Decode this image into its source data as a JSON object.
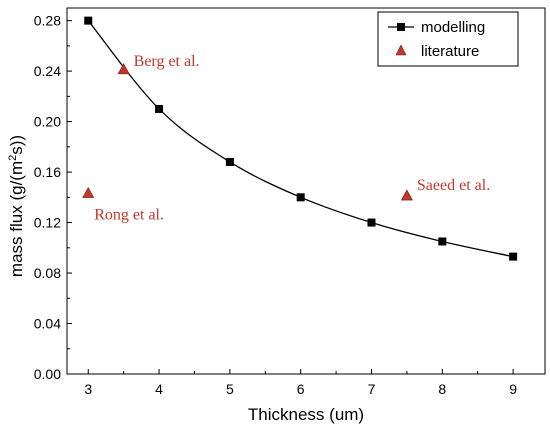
{
  "chart_data": {
    "type": "scatter",
    "xlabel": "Thickness (um)",
    "ylabel_main": "mass flux (g/(m",
    "ylabel_sup": "2",
    "ylabel_end": "s))",
    "xlim": [
      2.7,
      9.45
    ],
    "ylim": [
      0.0,
      0.29
    ],
    "x_ticks": [
      3,
      4,
      5,
      6,
      7,
      8,
      9
    ],
    "x_tick_labels": [
      "3",
      "4",
      "5",
      "6",
      "7",
      "8",
      "9"
    ],
    "y_ticks": [
      0.0,
      0.04,
      0.08,
      0.12,
      0.16,
      0.2,
      0.24,
      0.28
    ],
    "y_tick_labels": [
      "0.00",
      "0.04",
      "0.08",
      "0.12",
      "0.16",
      "0.20",
      "0.24",
      "0.28"
    ],
    "grid": false,
    "legend_position": "top-right",
    "series": [
      {
        "name": "modelling",
        "marker": "square",
        "line": "smooth",
        "color": "#000000",
        "x": [
          3,
          4,
          5,
          6,
          7,
          8,
          9
        ],
        "y": [
          0.28,
          0.21,
          0.168,
          0.14,
          0.12,
          0.105,
          0.093
        ]
      },
      {
        "name": "literature",
        "marker": "triangle",
        "line": "none",
        "color": "#c0392b",
        "x": [
          3.5,
          3.0,
          7.5
        ],
        "y": [
          0.241,
          0.143,
          0.141
        ],
        "labels": [
          "Berg et al.",
          "Rong et al.",
          "Saeed et al."
        ]
      }
    ]
  }
}
